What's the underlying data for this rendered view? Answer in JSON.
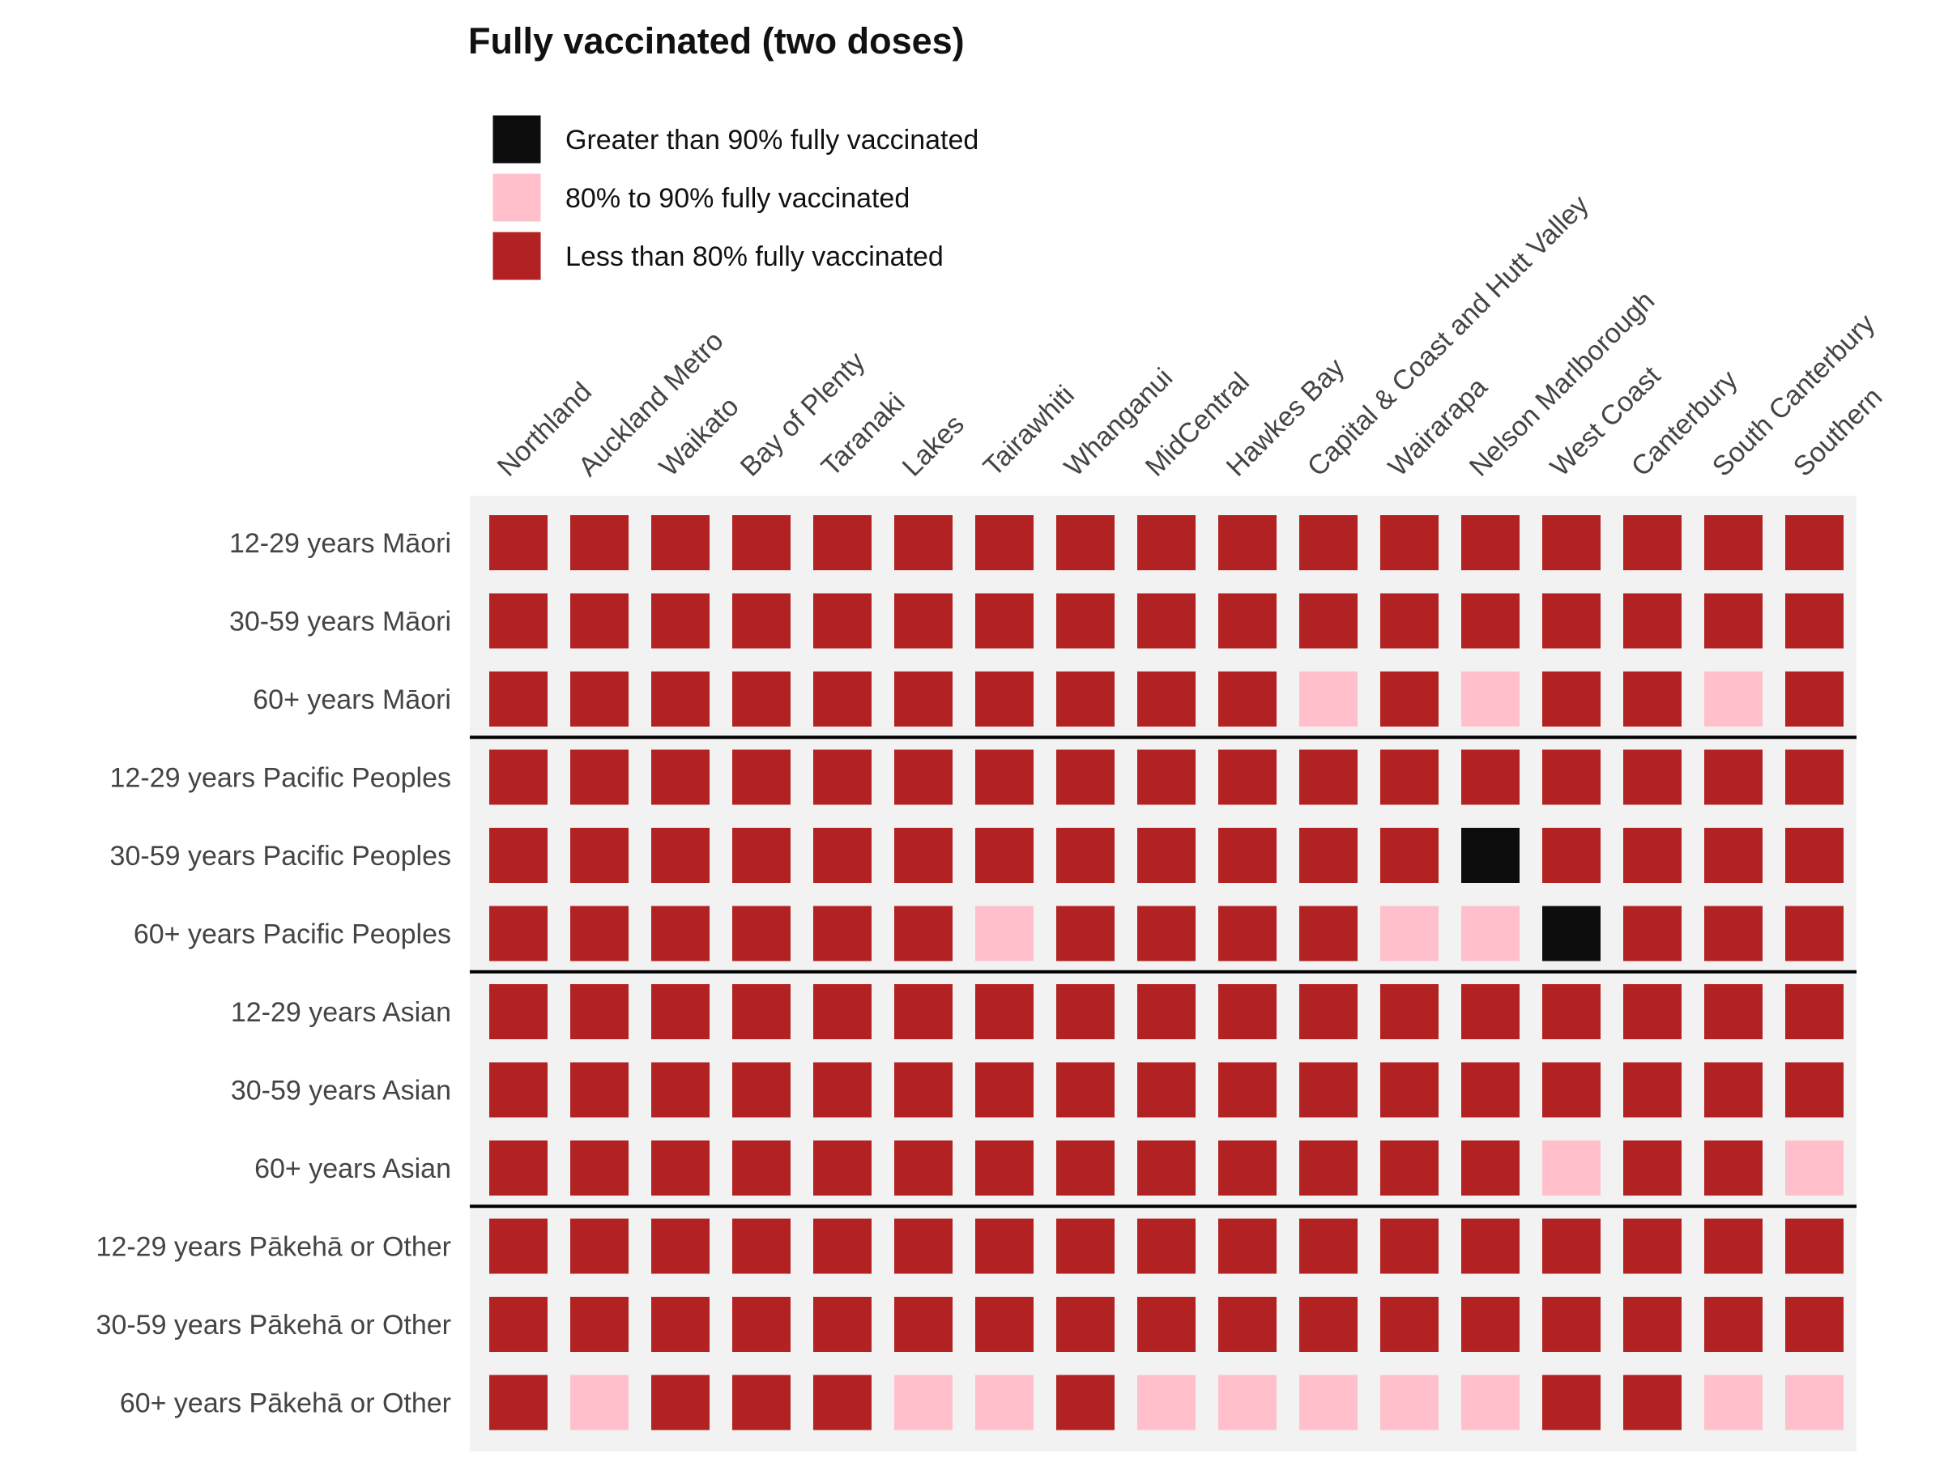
{
  "chart_data": {
    "type": "heatmap",
    "title": "Fully vaccinated (two doses)",
    "legend": {
      "placement": "top-left",
      "items": [
        {
          "key": "high",
          "label": "Greater than 90% fully vaccinated",
          "color": "#0d0d0d"
        },
        {
          "key": "mid",
          "label": "80% to 90% fully vaccinated",
          "color": "#ffc0cb"
        },
        {
          "key": "low",
          "label": "Less than 80% fully vaccinated",
          "color": "#b22222"
        }
      ]
    },
    "colors": {
      "background": "#f2f2f2",
      "separator": "#000000"
    },
    "columns": [
      "Northland",
      "Auckland Metro",
      "Waikato",
      "Bay of Plenty",
      "Taranaki",
      "Lakes",
      "Tairawhiti",
      "Whanganui",
      "MidCentral",
      "Hawkes Bay",
      "Capital & Coast and Hutt Valley",
      "Wairarapa",
      "Nelson Marlborough",
      "West Coast",
      "Canterbury",
      "South Canterbury",
      "Southern"
    ],
    "rows": [
      "12-29 years Māori",
      "30-59 years Māori",
      "60+ years Māori",
      "12-29 years Pacific Peoples",
      "30-59 years Pacific Peoples",
      "60+ years Pacific Peoples",
      "12-29 years Asian",
      "30-59 years Asian",
      "60+ years Asian",
      "12-29 years Pākehā or Other",
      "30-59 years Pākehā or Other",
      "60+ years Pākehā or Other"
    ],
    "group_size": 3,
    "values": [
      [
        "low",
        "low",
        "low",
        "low",
        "low",
        "low",
        "low",
        "low",
        "low",
        "low",
        "low",
        "low",
        "low",
        "low",
        "low",
        "low",
        "low"
      ],
      [
        "low",
        "low",
        "low",
        "low",
        "low",
        "low",
        "low",
        "low",
        "low",
        "low",
        "low",
        "low",
        "low",
        "low",
        "low",
        "low",
        "low"
      ],
      [
        "low",
        "low",
        "low",
        "low",
        "low",
        "low",
        "low",
        "low",
        "low",
        "low",
        "mid",
        "low",
        "mid",
        "low",
        "low",
        "mid",
        "low"
      ],
      [
        "low",
        "low",
        "low",
        "low",
        "low",
        "low",
        "low",
        "low",
        "low",
        "low",
        "low",
        "low",
        "low",
        "low",
        "low",
        "low",
        "low"
      ],
      [
        "low",
        "low",
        "low",
        "low",
        "low",
        "low",
        "low",
        "low",
        "low",
        "low",
        "low",
        "low",
        "high",
        "low",
        "low",
        "low",
        "low"
      ],
      [
        "low",
        "low",
        "low",
        "low",
        "low",
        "low",
        "mid",
        "low",
        "low",
        "low",
        "low",
        "mid",
        "mid",
        "high",
        "low",
        "low",
        "low"
      ],
      [
        "low",
        "low",
        "low",
        "low",
        "low",
        "low",
        "low",
        "low",
        "low",
        "low",
        "low",
        "low",
        "low",
        "low",
        "low",
        "low",
        "low"
      ],
      [
        "low",
        "low",
        "low",
        "low",
        "low",
        "low",
        "low",
        "low",
        "low",
        "low",
        "low",
        "low",
        "low",
        "low",
        "low",
        "low",
        "low"
      ],
      [
        "low",
        "low",
        "low",
        "low",
        "low",
        "low",
        "low",
        "low",
        "low",
        "low",
        "low",
        "low",
        "low",
        "mid",
        "low",
        "low",
        "mid"
      ],
      [
        "low",
        "low",
        "low",
        "low",
        "low",
        "low",
        "low",
        "low",
        "low",
        "low",
        "low",
        "low",
        "low",
        "low",
        "low",
        "low",
        "low"
      ],
      [
        "low",
        "low",
        "low",
        "low",
        "low",
        "low",
        "low",
        "low",
        "low",
        "low",
        "low",
        "low",
        "low",
        "low",
        "low",
        "low",
        "low"
      ],
      [
        "low",
        "mid",
        "low",
        "low",
        "low",
        "mid",
        "mid",
        "low",
        "mid",
        "mid",
        "mid",
        "mid",
        "mid",
        "low",
        "low",
        "mid",
        "mid"
      ]
    ]
  }
}
